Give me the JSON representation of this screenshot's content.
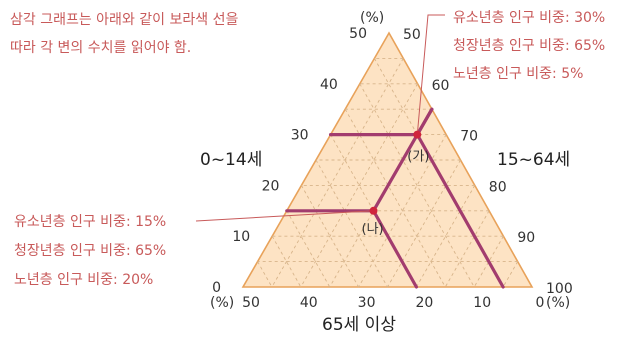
{
  "intro": {
    "line1": "삼각 그래프는 아래와 같이 보라색 선을",
    "line2": "따라 각 변의 수치를 읽어야 함."
  },
  "axes": {
    "left": "0~14세",
    "right": "15~64세",
    "bottom": "65세 이상",
    "percent": "(%)"
  },
  "ticks": {
    "left": [
      "0",
      "10",
      "20",
      "30",
      "40",
      "50"
    ],
    "right": [
      "50",
      "60",
      "70",
      "80",
      "90",
      "100"
    ],
    "bottom": [
      "50",
      "40",
      "30",
      "20",
      "10",
      "0"
    ]
  },
  "points": {
    "ga": {
      "label": "(가)",
      "young": 30,
      "working": 65,
      "elderly": 5,
      "lines": [
        "유소년층 인구 비중: 30%",
        "청장년층 인구 비중: 65%",
        "노년층 인구 비중: 5%"
      ]
    },
    "na": {
      "label": "(나)",
      "young": 15,
      "working": 65,
      "elderly": 20,
      "lines": [
        "유소년층 인구 비중: 15%",
        "청장년층 인구 비중: 65%",
        "노년층 인구 비중: 20%"
      ]
    }
  },
  "colors": {
    "fill": "#fde3c4",
    "edge": "#e8a25a",
    "grid": "#d7b48a",
    "reading_line": "#a23c6e",
    "point": "#d0243c",
    "annotation": "#c85a5a"
  }
}
